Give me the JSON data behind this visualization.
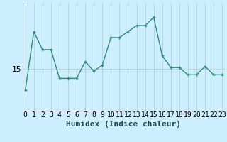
{
  "x": [
    0,
    1,
    2,
    3,
    4,
    5,
    6,
    7,
    8,
    9,
    10,
    11,
    12,
    13,
    14,
    15,
    16,
    17,
    18,
    19,
    20,
    21,
    22,
    23
  ],
  "y": [
    13.2,
    18.1,
    16.6,
    16.6,
    14.2,
    14.2,
    14.2,
    15.6,
    14.8,
    15.3,
    17.6,
    17.6,
    18.1,
    18.6,
    18.6,
    19.3,
    16.1,
    15.1,
    15.1,
    14.5,
    14.5,
    15.2,
    14.5,
    14.5
  ],
  "line_color": "#2e8b7a",
  "marker": "+",
  "marker_size": 3,
  "marker_linewidth": 1.0,
  "line_width": 1.0,
  "bg_color": "#cceeff",
  "vline_color": "#aacccc",
  "hline_color": "#aacccc",
  "xlabel": "Humidex (Indice chaleur)",
  "ytick_val": 15,
  "ytick_label": "15",
  "ylim": [
    11.5,
    20.5
  ],
  "xlim": [
    -0.3,
    23.3
  ],
  "xlabel_fontsize": 8,
  "tick_fontsize": 7
}
